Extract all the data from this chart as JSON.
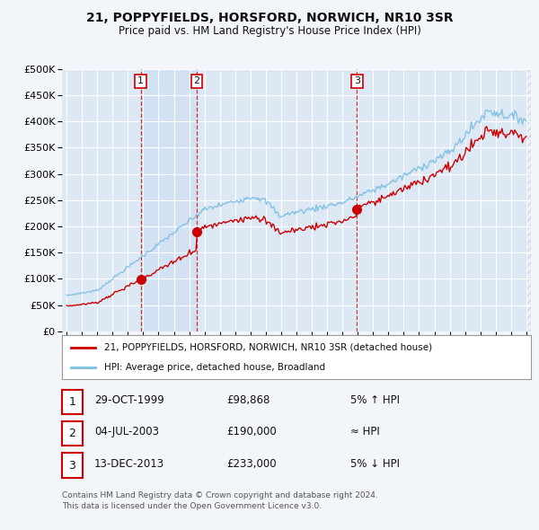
{
  "title": "21, POPPYFIELDS, HORSFORD, NORWICH, NR10 3SR",
  "subtitle": "Price paid vs. HM Land Registry's House Price Index (HPI)",
  "legend_line1": "21, POPPYFIELDS, HORSFORD, NORWICH, NR10 3SR (detached house)",
  "legend_line2": "HPI: Average price, detached house, Broadland",
  "footer1": "Contains HM Land Registry data © Crown copyright and database right 2024.",
  "footer2": "This data is licensed under the Open Government Licence v3.0.",
  "table": [
    {
      "num": "1",
      "date": "29-OCT-1999",
      "price": "£98,868",
      "relation": "5% ↑ HPI"
    },
    {
      "num": "2",
      "date": "04-JUL-2003",
      "price": "£190,000",
      "relation": "≈ HPI"
    },
    {
      "num": "3",
      "date": "13-DEC-2013",
      "price": "£233,000",
      "relation": "5% ↓ HPI"
    }
  ],
  "sale_years": [
    1999.83,
    2003.5,
    2013.95
  ],
  "sale_prices": [
    98868,
    190000,
    233000
  ],
  "sale_labels": [
    "1",
    "2",
    "3"
  ],
  "hpi_color": "#7bbde0",
  "price_color": "#cc0000",
  "vline_color": "#cc0000",
  "background_color": "#f2f5fa",
  "plot_bg": "#dde8f5",
  "grid_color": "#ffffff",
  "shade_color": "#c8ddf0",
  "ylim": [
    0,
    500000
  ],
  "xlim_start": 1994.7,
  "xlim_end": 2025.3,
  "xticks": [
    1995,
    1996,
    1997,
    1998,
    1999,
    2000,
    2001,
    2002,
    2003,
    2004,
    2005,
    2006,
    2007,
    2008,
    2009,
    2010,
    2011,
    2012,
    2013,
    2014,
    2015,
    2016,
    2017,
    2018,
    2019,
    2020,
    2021,
    2022,
    2023,
    2024,
    2025
  ],
  "yticks": [
    0,
    50000,
    100000,
    150000,
    200000,
    250000,
    300000,
    350000,
    400000,
    450000,
    500000
  ]
}
